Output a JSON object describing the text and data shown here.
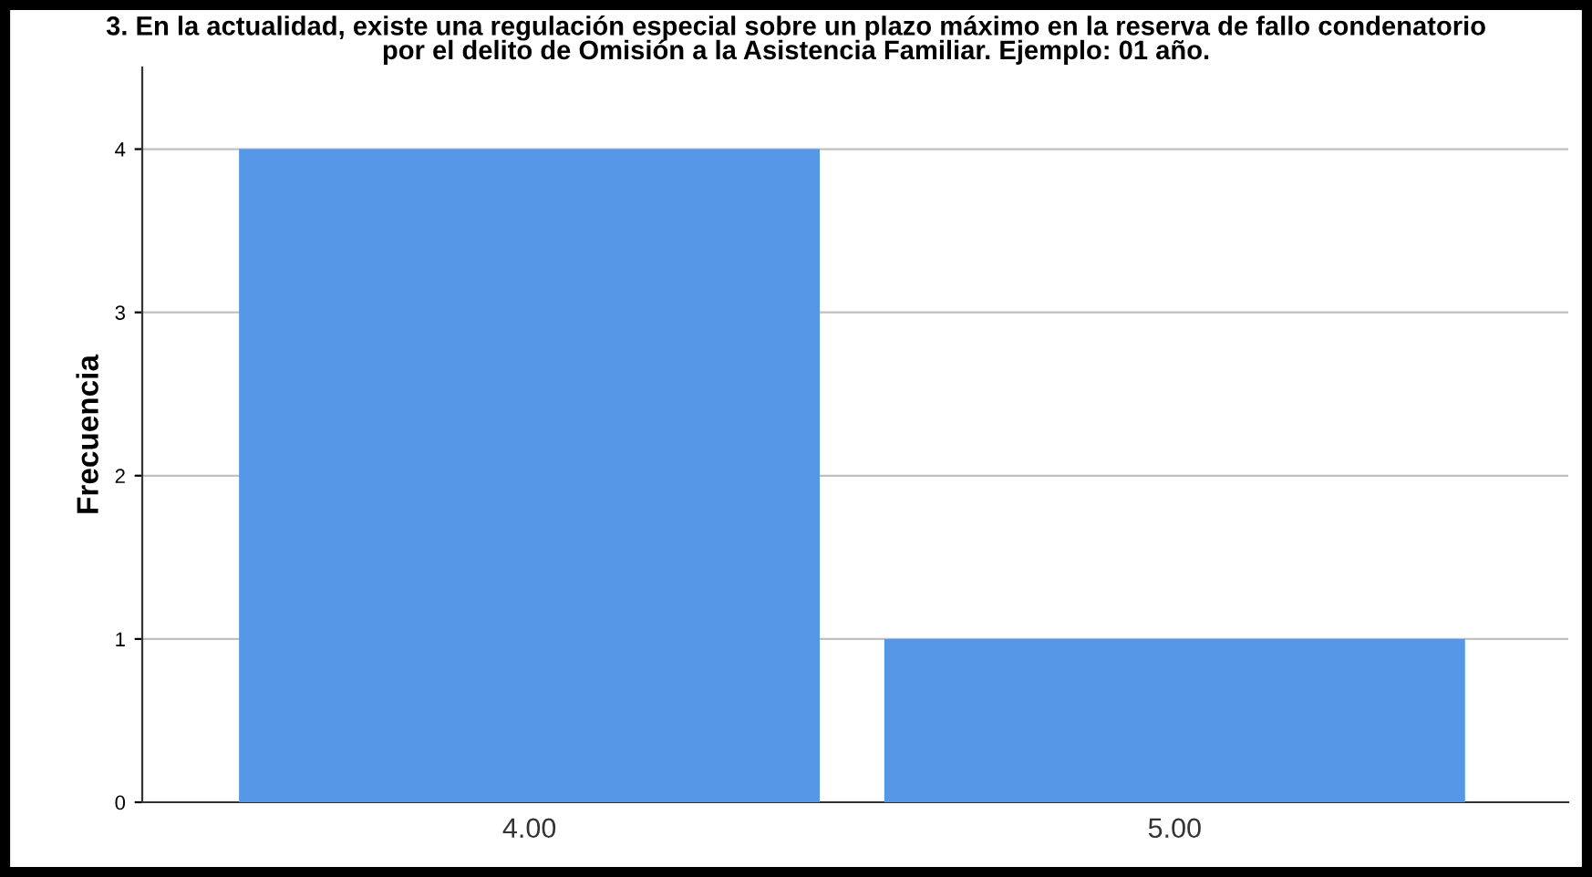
{
  "chart_data": {
    "type": "bar",
    "title": "3. En la actualidad, existe una regulación especial sobre un plazo máximo en la reserva de fallo condenatorio\npor el delito de Omisión a la Asistencia Familiar. Ejemplo: 01 año.",
    "ylabel": "Frecuencia",
    "categories": [
      "4.00",
      "5.00"
    ],
    "values": [
      4,
      1
    ],
    "color": "#5597e6",
    "ylim": [
      0,
      4.5
    ],
    "yticks": [
      0,
      1,
      2,
      3,
      4
    ],
    "grid": "y",
    "legend": false
  }
}
